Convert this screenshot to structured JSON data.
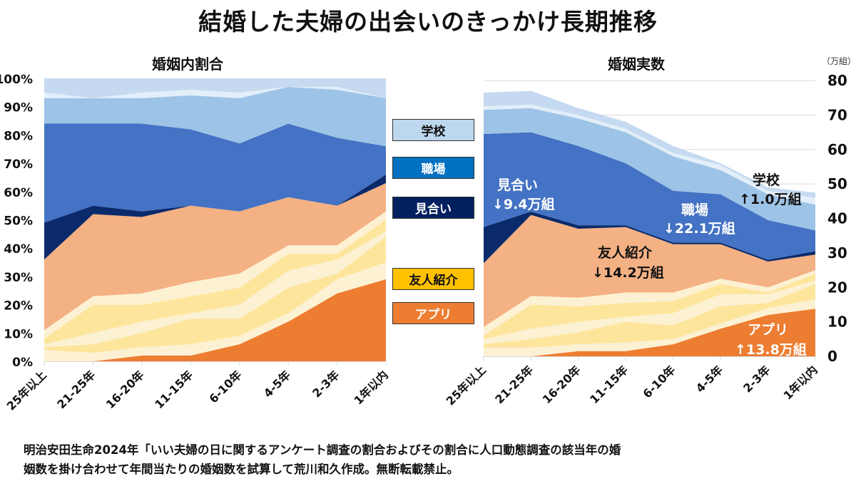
{
  "title": "結婚した夫婦の出会いのきっかけ長期推移",
  "legend": [
    {
      "label": "学校",
      "color": "#bdd7ee",
      "text_color": "#111111"
    },
    {
      "label": "職場",
      "color": "#0070c0",
      "text_color": "#ffffff"
    },
    {
      "label": "見合い",
      "color": "#002060",
      "text_color": "#ffffff"
    },
    {
      "label": "友人紹介",
      "color": "#ffc000",
      "text_color": "#111111"
    },
    {
      "label": "アプリ",
      "color": "#ed7d31",
      "text_color": "#ffffff"
    }
  ],
  "footnote": [
    "明治安田生命2024年「いい夫婦の日に関するアンケート調査の割合およびその割合に人口動態調査の該当年の婚",
    "姻数を掛け合わせて年間当たりの婚姻数を試算して荒川和久作成。無断転載禁止。"
  ],
  "chart_data": [
    {
      "type": "area",
      "stacked": true,
      "title": "婚姻内割合",
      "categories": [
        "25年以上",
        "21-25年",
        "16-20年",
        "11-15年",
        "6-10年",
        "4-5年",
        "2-3年",
        "1年以内"
      ],
      "ylim": [
        0,
        100
      ],
      "yticks": [
        "0%",
        "10%",
        "20%",
        "30%",
        "40%",
        "50%",
        "60%",
        "70%",
        "80%",
        "90%",
        "100%"
      ],
      "cumulative_tops": [
        {
          "name": "アプリ",
          "color": "#ed7d31",
          "values": [
            0,
            0,
            2,
            2,
            6,
            14,
            24,
            29
          ]
        },
        {
          "color": "#fdf1d3",
          "values": [
            4,
            3,
            5,
            6,
            9,
            17,
            29,
            35
          ]
        },
        {
          "color": "#fde59c",
          "values": [
            5,
            6,
            10,
            15,
            15,
            26,
            31,
            44
          ]
        },
        {
          "color": "#fdf1d3",
          "values": [
            6,
            10,
            14,
            17,
            20,
            32,
            36,
            46
          ]
        },
        {
          "color": "#fde59c",
          "values": [
            8,
            20,
            20,
            23,
            26,
            38,
            38,
            50
          ]
        },
        {
          "color": "#fdf1d3",
          "values": [
            11,
            23,
            24,
            28,
            31,
            41,
            41,
            53
          ]
        },
        {
          "name": "友人紹介",
          "color": "#f4b183",
          "values": [
            36,
            52,
            51,
            55,
            53,
            58,
            55,
            63
          ]
        },
        {
          "name": "見合い",
          "color": "#0b2a6b",
          "values": [
            49,
            55,
            53,
            55,
            53,
            58,
            55,
            66
          ]
        },
        {
          "name": "職場",
          "color": "#4472c4",
          "values": [
            84,
            84,
            84,
            82,
            77,
            84,
            79,
            76
          ]
        },
        {
          "name": "学校",
          "color": "#9dc3e6",
          "values": [
            93,
            93,
            93,
            94,
            93,
            97,
            96,
            93
          ]
        },
        {
          "color": "#e2eef9",
          "values": [
            95,
            93,
            95,
            96,
            95,
            97,
            97,
            93
          ]
        },
        {
          "color": "#c5daf0",
          "values": [
            100,
            100,
            100,
            100,
            100,
            100,
            100,
            100
          ]
        }
      ]
    },
    {
      "type": "area",
      "stacked": true,
      "title": "婚姻実数",
      "unit": "（万組）",
      "categories": [
        "25年以上",
        "21-25年",
        "16-20年",
        "11-15年",
        "6-10年",
        "4-5年",
        "2-3年",
        "1年以内"
      ],
      "ylim": [
        0,
        80
      ],
      "yticks": [
        "0",
        "10",
        "20",
        "30",
        "40",
        "50",
        "60",
        "70",
        "80"
      ],
      "grid": true,
      "cumulative_tops": [
        {
          "name": "アプリ",
          "color": "#ed7d31",
          "values": [
            0,
            0,
            1.5,
            1.5,
            3.5,
            8,
            12,
            13.8
          ]
        },
        {
          "color": "#fdf1d3",
          "values": [
            2.5,
            2.5,
            3.5,
            4,
            5,
            9.5,
            14,
            16.5
          ]
        },
        {
          "color": "#fde59c",
          "values": [
            3.5,
            5,
            7,
            10,
            9,
            14.5,
            15.5,
            21
          ]
        },
        {
          "color": "#fdf1d3",
          "values": [
            5,
            8,
            10,
            11.5,
            12.5,
            18,
            18,
            22
          ]
        },
        {
          "color": "#fde59c",
          "values": [
            6,
            15,
            14.5,
            15.5,
            16,
            21,
            18.5,
            24
          ]
        },
        {
          "color": "#fdf1d3",
          "values": [
            8.5,
            17.5,
            17,
            18.5,
            18.5,
            22.5,
            20,
            25
          ]
        },
        {
          "name": "友人紹介",
          "color": "#f4b183",
          "values": [
            27,
            41,
            37,
            37.5,
            32.5,
            32.5,
            27.5,
            29.5
          ]
        },
        {
          "name": "見合い",
          "color": "#0b2a6b",
          "values": [
            37.5,
            42,
            38,
            38,
            33,
            33,
            28,
            30.5
          ]
        },
        {
          "name": "職場",
          "color": "#4472c4",
          "values": [
            64.5,
            65,
            61,
            56,
            48,
            47,
            39.5,
            36.5
          ]
        },
        {
          "name": "学校",
          "color": "#9dc3e6",
          "values": [
            71.5,
            72,
            69,
            65,
            58,
            54,
            47,
            44
          ]
        },
        {
          "color": "#e2eef9",
          "values": [
            72.5,
            73,
            70,
            66,
            59,
            55.5,
            48,
            46
          ]
        },
        {
          "color": "#c5daf0",
          "values": [
            76.5,
            77,
            72,
            68,
            61,
            56,
            49,
            47.5
          ]
        }
      ],
      "annotations": [
        {
          "lines": [
            "見合い",
            "↓9.4万組"
          ],
          "color": "#ffffff"
        },
        {
          "lines": [
            "職場",
            "↓22.1万組"
          ],
          "color": "#ffffff"
        },
        {
          "lines": [
            "友人紹介",
            "↓14.2万組"
          ],
          "color": "#111111"
        },
        {
          "lines": [
            "学校",
            "↑1.0万組"
          ],
          "color": "#111111"
        },
        {
          "lines": [
            "アプリ",
            "↑13.8万組"
          ],
          "color": "#ffffff"
        }
      ]
    }
  ]
}
